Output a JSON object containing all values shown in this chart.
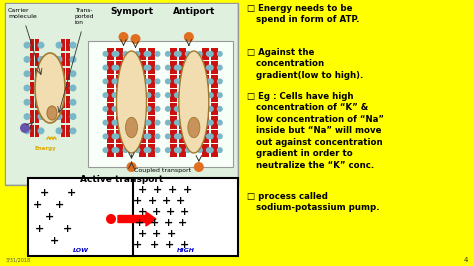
{
  "bg_color": "#FFFF00",
  "slide_number": "4",
  "date_text": "3/31/2018",
  "bullet_points": [
    "□ Energy needs to be\n   spend in form of ATP.",
    "□ Against the\n   concentration\n   gradient(low to high).",
    "□ Eg : Cells have high\n   concentration of “K” &\n   low concentration of “Na”\n   inside but “Na” will move\n   out against concentration\n   gradient in order to\n   neutralize the “K” conc.",
    "□ process called\n   sodium-potassium pump."
  ],
  "diagram_bg": "#c8dfc8",
  "inner_bg": "#dff0df",
  "bottom_box_bg": "#ffffff",
  "plus_color": "#000000",
  "arrow_color": "#ff0000",
  "low_label": "LOW",
  "high_label": "HIGH",
  "text_color": "#000000",
  "title_active_transport": "Active transport",
  "label_symport": "Symport",
  "label_antiport": "Antiport",
  "label_carrier": "Carrier\nmolecule",
  "label_transported": "Trans-\nported\nion",
  "label_energy": "Energy",
  "label_coupled": "Coupled transport",
  "membrane_red": "#cc1111",
  "lipid_head_color": "#7ab8c8",
  "carrier_fill": "#f2ddb0",
  "carrier_edge": "#a07830",
  "orange_dot": "#e07020",
  "purple_dot": "#6655aa",
  "energy_color": "#ddaa00"
}
